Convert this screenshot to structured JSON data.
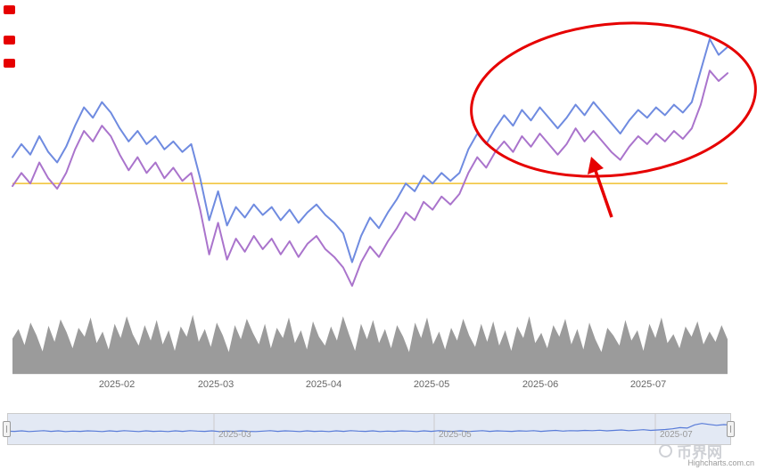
{
  "watermark": {
    "brand": "币界网",
    "credits": "Highcharts.com.cn"
  },
  "chart_data": {
    "type": "line",
    "title": "",
    "legend": "off",
    "grid": "off",
    "ylim": [
      0,
      100
    ],
    "x_axis": {
      "labels": [
        "2025-02",
        "2025-03",
        "2025-04",
        "2025-05",
        "2025-06",
        "2025-07"
      ]
    },
    "navigator_labels": [
      "2025-03",
      "2025-05",
      "2025-07"
    ],
    "plotline": {
      "value": 42,
      "color": "#f0c12e"
    },
    "series": [
      {
        "name": "price-line-blue",
        "type": "line",
        "color": "#6f8be0",
        "values": [
          52,
          57,
          53,
          60,
          54,
          50,
          56,
          64,
          71,
          67,
          73,
          69,
          63,
          58,
          62,
          57,
          60,
          55,
          58,
          54,
          57,
          44,
          28,
          39,
          26,
          33,
          29,
          34,
          30,
          33,
          28,
          32,
          27,
          31,
          34,
          30,
          27,
          23,
          12,
          22,
          29,
          25,
          31,
          36,
          42,
          39,
          45,
          42,
          46,
          43,
          46,
          55,
          61,
          57,
          63,
          68,
          64,
          70,
          66,
          71,
          67,
          63,
          67,
          72,
          68,
          73,
          69,
          65,
          61,
          66,
          70,
          67,
          71,
          68,
          72,
          69,
          73,
          85,
          97,
          91,
          94
        ]
      },
      {
        "name": "price-line-purple",
        "type": "line",
        "color": "#aa74cc",
        "values": [
          41,
          46,
          42,
          50,
          44,
          40,
          46,
          55,
          62,
          58,
          64,
          60,
          53,
          47,
          52,
          46,
          50,
          44,
          48,
          43,
          46,
          32,
          15,
          27,
          13,
          21,
          16,
          22,
          17,
          21,
          15,
          20,
          14,
          19,
          22,
          17,
          14,
          10,
          3,
          12,
          18,
          14,
          20,
          25,
          31,
          28,
          35,
          32,
          37,
          34,
          38,
          46,
          52,
          48,
          54,
          58,
          54,
          60,
          56,
          61,
          57,
          53,
          57,
          63,
          58,
          62,
          58,
          54,
          51,
          56,
          60,
          57,
          61,
          58,
          62,
          59,
          63,
          72,
          85,
          81,
          84
        ]
      },
      {
        "name": "volume",
        "type": "area",
        "color": "#9b9b9b",
        "values": [
          55,
          70,
          45,
          80,
          60,
          35,
          75,
          50,
          85,
          65,
          40,
          72,
          58,
          88,
          48,
          66,
          38,
          78,
          56,
          90,
          62,
          44,
          76,
          52,
          84,
          46,
          68,
          36,
          74,
          58,
          92,
          50,
          70,
          42,
          80,
          60,
          34,
          76,
          54,
          86,
          64,
          46,
          78,
          40,
          72,
          56,
          88,
          48,
          68,
          38,
          82,
          58,
          44,
          74,
          52,
          90,
          62,
          36,
          78,
          54,
          84,
          48,
          70,
          40,
          76,
          58,
          34,
          80,
          56,
          88,
          46,
          66,
          38,
          72,
          52,
          86,
          60,
          42,
          78,
          50,
          82,
          44,
          68,
          36,
          74,
          56,
          90,
          48,
          64,
          40,
          76,
          58,
          86,
          46,
          70,
          38,
          80,
          54,
          34,
          72,
          60,
          44,
          84,
          52,
          68,
          36,
          78,
          56,
          88,
          48,
          62,
          40,
          74,
          58,
          82,
          46,
          66,
          50,
          76,
          54
        ]
      },
      {
        "name": "navigator-line",
        "type": "line",
        "color": "#587bd8",
        "values": [
          45,
          44,
          46,
          43,
          45,
          47,
          44,
          46,
          43,
          45,
          44,
          46,
          45,
          43,
          46,
          44,
          47,
          45,
          43,
          46,
          44,
          45,
          43,
          46,
          44,
          47,
          45,
          44,
          46,
          43,
          45,
          44,
          46,
          44,
          43,
          45,
          47,
          44,
          46,
          45,
          43,
          46,
          44,
          45,
          43,
          46,
          44,
          47,
          45,
          44,
          46,
          43,
          45,
          44,
          46,
          45,
          43,
          46,
          44,
          47,
          45,
          44,
          46,
          43,
          45,
          47,
          44,
          46,
          45,
          44,
          46,
          45,
          47,
          44,
          46,
          48,
          45,
          47,
          46,
          48,
          47,
          49,
          46,
          48,
          50,
          47,
          49,
          51,
          48,
          50,
          52,
          55,
          60,
          58,
          72,
          78,
          74,
          70,
          73,
          71
        ]
      }
    ],
    "annotations": {
      "ellipse": {
        "shape": "ellipse",
        "color": "#e60000"
      },
      "arrow": {
        "shape": "arrow",
        "color": "#e60000"
      },
      "markers": {
        "shape": "squares",
        "color": "#e60000",
        "count": 3
      }
    }
  }
}
